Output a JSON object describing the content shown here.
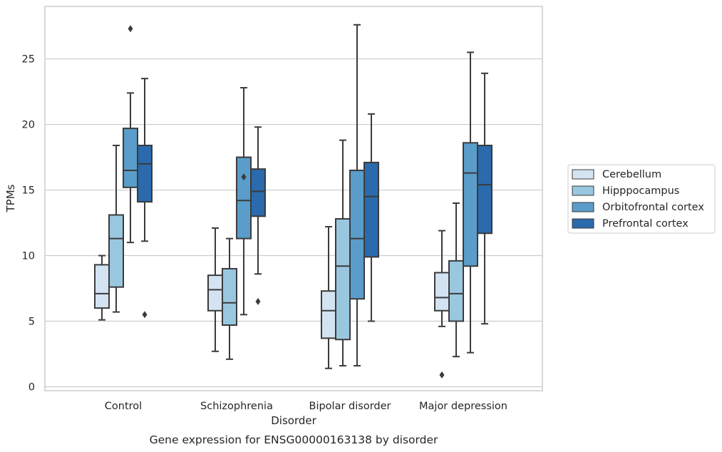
{
  "chart_data": {
    "type": "box",
    "title": "",
    "caption": "Gene expression for ENSG00000163138 by disorder",
    "xlabel": "Disorder",
    "ylabel": "TPMs",
    "ylim": [
      -0.3,
      29
    ],
    "yticks": [
      0,
      5,
      10,
      15,
      20,
      25
    ],
    "grid": true,
    "legend_position": "right",
    "categories": [
      "Control",
      "Schizophrenia",
      "Bipolar disorder",
      "Major depression"
    ],
    "series": [
      {
        "name": "Cerebellum",
        "color": "#d3e3f2",
        "boxes": [
          {
            "whisker_low": 5.1,
            "q1": 6.0,
            "median": 7.1,
            "q3": 9.3,
            "whisker_high": 10.0,
            "outliers": []
          },
          {
            "whisker_low": 2.7,
            "q1": 5.8,
            "median": 7.4,
            "q3": 8.5,
            "whisker_high": 12.1,
            "outliers": []
          },
          {
            "whisker_low": 1.4,
            "q1": 3.7,
            "median": 5.8,
            "q3": 7.3,
            "whisker_high": 12.2,
            "outliers": []
          },
          {
            "whisker_low": 4.6,
            "q1": 5.8,
            "median": 6.8,
            "q3": 8.7,
            "whisker_high": 11.9,
            "outliers": [
              0.9
            ]
          }
        ]
      },
      {
        "name": "Hipppocampus",
        "color": "#9ac7e0",
        "boxes": [
          {
            "whisker_low": 5.7,
            "q1": 7.6,
            "median": 11.3,
            "q3": 13.1,
            "whisker_high": 18.4,
            "outliers": []
          },
          {
            "whisker_low": 2.1,
            "q1": 4.7,
            "median": 6.4,
            "q3": 9.0,
            "whisker_high": 11.3,
            "outliers": []
          },
          {
            "whisker_low": 1.6,
            "q1": 3.6,
            "median": 9.2,
            "q3": 12.8,
            "whisker_high": 18.8,
            "outliers": []
          },
          {
            "whisker_low": 2.3,
            "q1": 5.0,
            "median": 7.1,
            "q3": 9.6,
            "whisker_high": 14.0,
            "outliers": []
          }
        ]
      },
      {
        "name": "Orbitofrontal cortex",
        "color": "#5a9dca",
        "boxes": [
          {
            "whisker_low": 11.0,
            "q1": 15.2,
            "median": 16.5,
            "q3": 19.7,
            "whisker_high": 22.4,
            "outliers": [
              27.3
            ]
          },
          {
            "whisker_low": 5.5,
            "q1": 11.3,
            "median": 14.2,
            "q3": 17.5,
            "whisker_high": 22.8,
            "outliers": [
              16.0
            ]
          },
          {
            "whisker_low": 1.6,
            "q1": 6.7,
            "median": 11.3,
            "q3": 16.5,
            "whisker_high": 27.6,
            "outliers": []
          },
          {
            "whisker_low": 2.6,
            "q1": 9.2,
            "median": 16.3,
            "q3": 18.6,
            "whisker_high": 25.5,
            "outliers": []
          }
        ]
      },
      {
        "name": "Prefrontal cortex",
        "color": "#2b6aac",
        "boxes": [
          {
            "whisker_low": 11.1,
            "q1": 14.1,
            "median": 17.0,
            "q3": 18.4,
            "whisker_high": 23.5,
            "outliers": [
              5.5
            ]
          },
          {
            "whisker_low": 8.6,
            "q1": 13.0,
            "median": 14.9,
            "q3": 16.6,
            "whisker_high": 19.8,
            "outliers": [
              6.5
            ]
          },
          {
            "whisker_low": 5.0,
            "q1": 9.9,
            "median": 14.5,
            "q3": 17.1,
            "whisker_high": 20.8,
            "outliers": []
          },
          {
            "whisker_low": 4.8,
            "q1": 11.7,
            "median": 15.4,
            "q3": 18.4,
            "whisker_high": 23.9,
            "outliers": []
          }
        ]
      }
    ]
  }
}
